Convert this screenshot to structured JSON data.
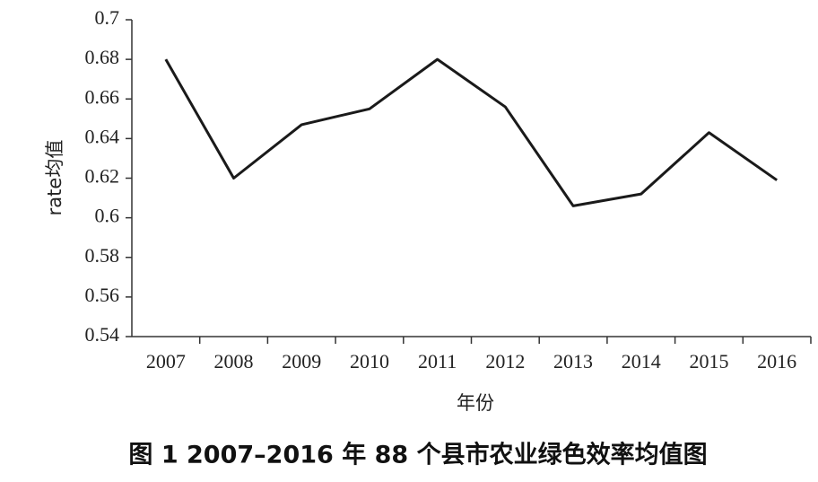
{
  "chart_data": {
    "type": "line",
    "title": "图 1  2007–2016 年 88 个县市农业绿色效率均值图",
    "x_label": "年份",
    "y_label": "rate均值",
    "categories": [
      "2007",
      "2008",
      "2009",
      "2010",
      "2011",
      "2012",
      "2013",
      "2014",
      "2015",
      "2016"
    ],
    "values": [
      0.68,
      0.62,
      0.647,
      0.655,
      0.68,
      0.656,
      0.606,
      0.612,
      0.643,
      0.619
    ],
    "color": "#1a1a1a",
    "ylim": [
      0.54,
      0.7
    ],
    "yticks": [
      0.54,
      0.56,
      0.58,
      0.6,
      0.62,
      0.64,
      0.66,
      0.68,
      0.7
    ],
    "grid": false
  }
}
